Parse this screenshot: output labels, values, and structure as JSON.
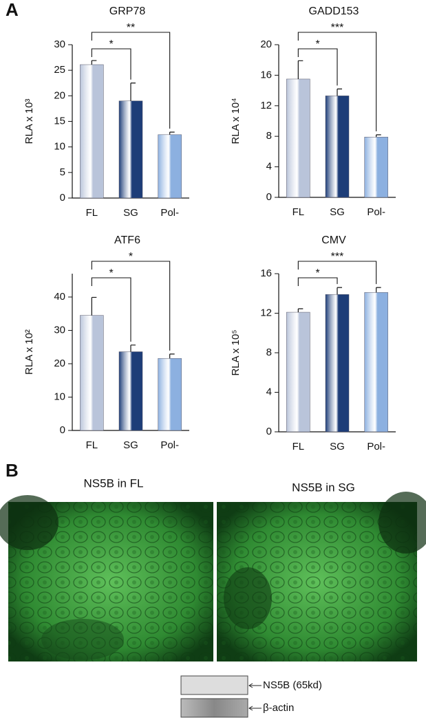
{
  "panel_labels": [
    "A",
    "B"
  ],
  "chart_data": [
    {
      "type": "bar",
      "title": "GRP78",
      "y_label": "RLA x 10³",
      "categories": [
        "FL",
        "SG",
        "Pol-"
      ],
      "values": [
        26.1,
        19.0,
        12.4
      ],
      "errors": [
        0.8,
        3.5,
        0.5
      ],
      "colors": [
        "#b9c4da",
        "#1d3d78",
        "#8cb0e0"
      ],
      "ylim": [
        0,
        30
      ],
      "yticks": [
        0,
        5,
        10,
        15,
        20,
        25,
        30
      ],
      "significance_labels": [
        "*",
        "**"
      ]
    },
    {
      "type": "bar",
      "title": "GADD153",
      "y_label": "RLA x 10⁴",
      "categories": [
        "FL",
        "SG",
        "Pol-"
      ],
      "values": [
        15.5,
        13.3,
        7.9
      ],
      "errors": [
        2.4,
        0.9,
        0.3
      ],
      "colors": [
        "#b9c4da",
        "#1d3d78",
        "#8cb0e0"
      ],
      "ylim": [
        0,
        20
      ],
      "yticks": [
        0,
        4,
        8,
        12,
        16,
        20
      ],
      "significance_labels": [
        "*",
        "***"
      ]
    },
    {
      "type": "bar",
      "title": "ATF6",
      "y_label": "RLA x 10²",
      "categories": [
        "FL",
        "SG",
        "Pol-"
      ],
      "values": [
        34.5,
        23.6,
        21.6
      ],
      "errors": [
        5.4,
        2.0,
        1.3
      ],
      "colors": [
        "#b9c4da",
        "#1d3d78",
        "#8cb0e0"
      ],
      "ylim": [
        0,
        47
      ],
      "yticks": [
        0,
        10,
        20,
        30,
        40
      ],
      "significance_labels": [
        "*",
        "*"
      ]
    },
    {
      "type": "bar",
      "title": "CMV",
      "y_label": "RLA x 10⁵",
      "categories": [
        "FL",
        "SG",
        "Pol-"
      ],
      "values": [
        12.1,
        13.9,
        14.1
      ],
      "errors": [
        0.35,
        0.7,
        0.5
      ],
      "colors": [
        "#b9c4da",
        "#1d3d78",
        "#8cb0e0"
      ],
      "ylim": [
        0,
        16
      ],
      "yticks": [
        0,
        4,
        8,
        12,
        16
      ],
      "significance_labels": [
        "*",
        "***"
      ]
    }
  ],
  "images": [
    {
      "title": "NS5B in FL"
    },
    {
      "title": "NS5B in SG"
    }
  ],
  "blot": {
    "labels": [
      "NS5B (65kd)",
      "β-actin"
    ]
  }
}
